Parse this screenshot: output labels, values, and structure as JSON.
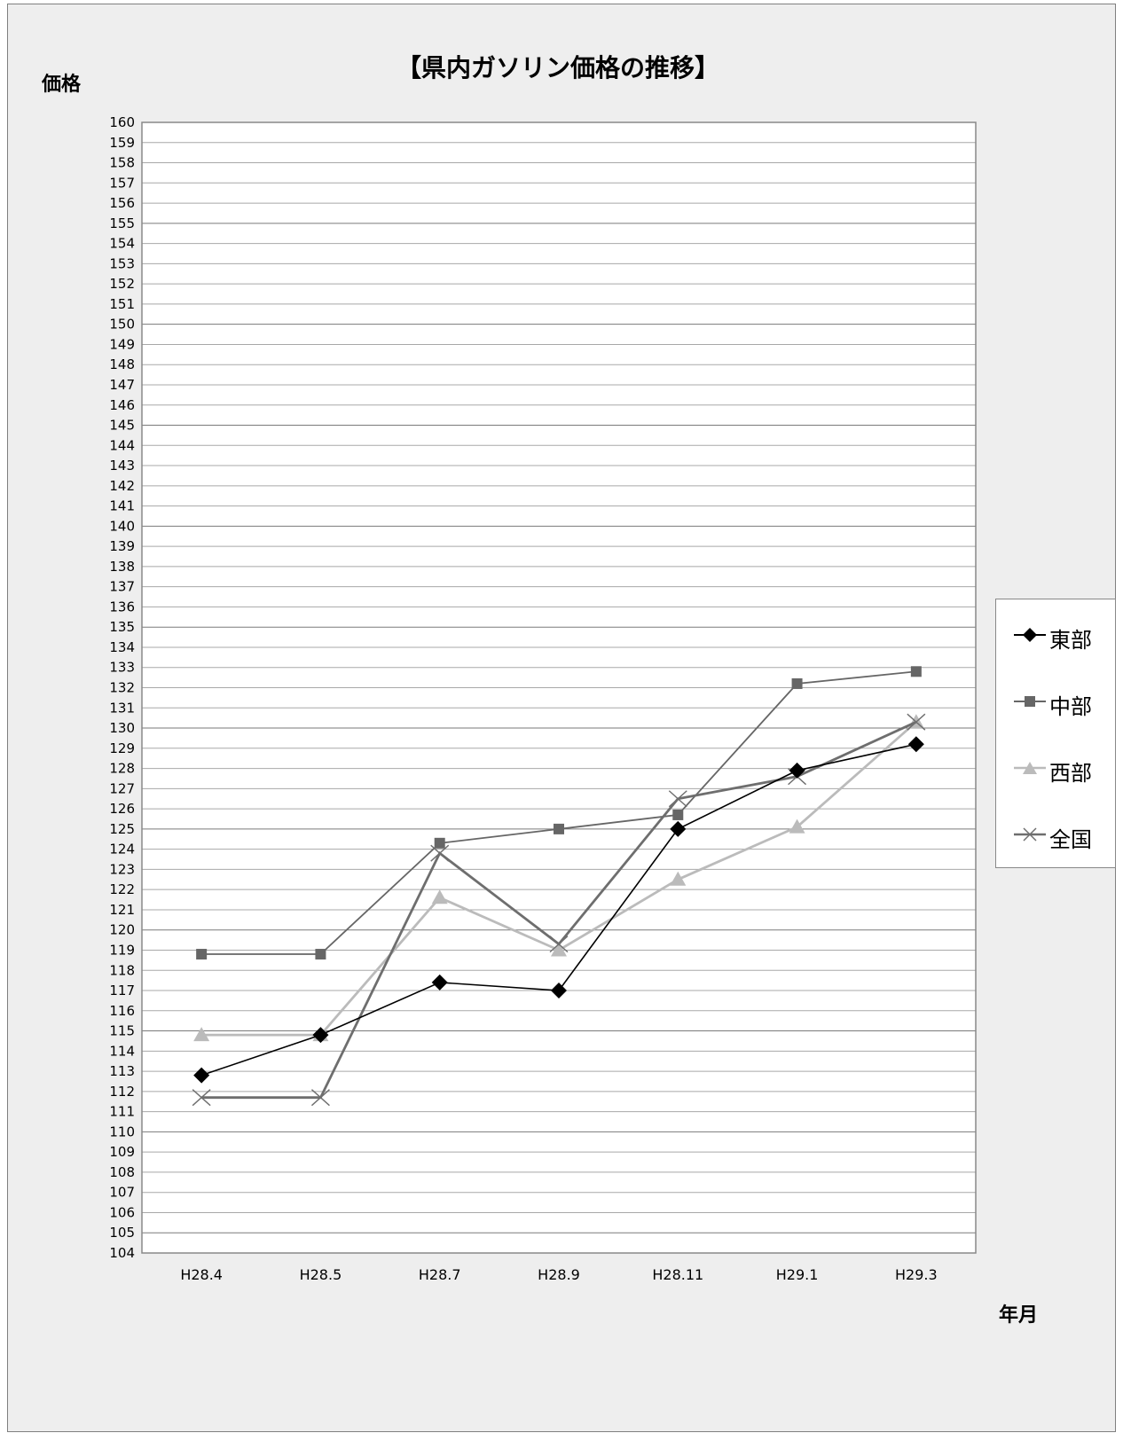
{
  "chart_data": {
    "type": "line",
    "title": "【県内ガソリン価格の推移】",
    "ylabel": "価格",
    "xlabel": "年月",
    "categories": [
      "H28.4",
      "H28.5",
      "H28.7",
      "H28.9",
      "H28.11",
      "H29.1",
      "H29.3"
    ],
    "ylim": [
      104,
      160
    ],
    "ytick_step": 1,
    "grid": true,
    "legend_position": "right",
    "series": [
      {
        "name": "東部",
        "marker": "diamond",
        "color": "#000000",
        "values": [
          112.8,
          114.8,
          117.4,
          117.0,
          125.0,
          127.9,
          129.2
        ]
      },
      {
        "name": "中部",
        "marker": "square",
        "color": "#666666",
        "values": [
          118.8,
          118.8,
          124.3,
          125.0,
          125.7,
          132.2,
          132.8
        ]
      },
      {
        "name": "西部",
        "marker": "triangle",
        "color": "#bbbbbb",
        "values": [
          114.8,
          114.8,
          121.6,
          119.0,
          122.5,
          125.1,
          130.3
        ]
      },
      {
        "name": "全国",
        "marker": "x",
        "color": "#6e6e6e",
        "values": [
          111.7,
          111.7,
          123.8,
          119.3,
          126.5,
          127.6,
          130.3
        ]
      }
    ]
  }
}
